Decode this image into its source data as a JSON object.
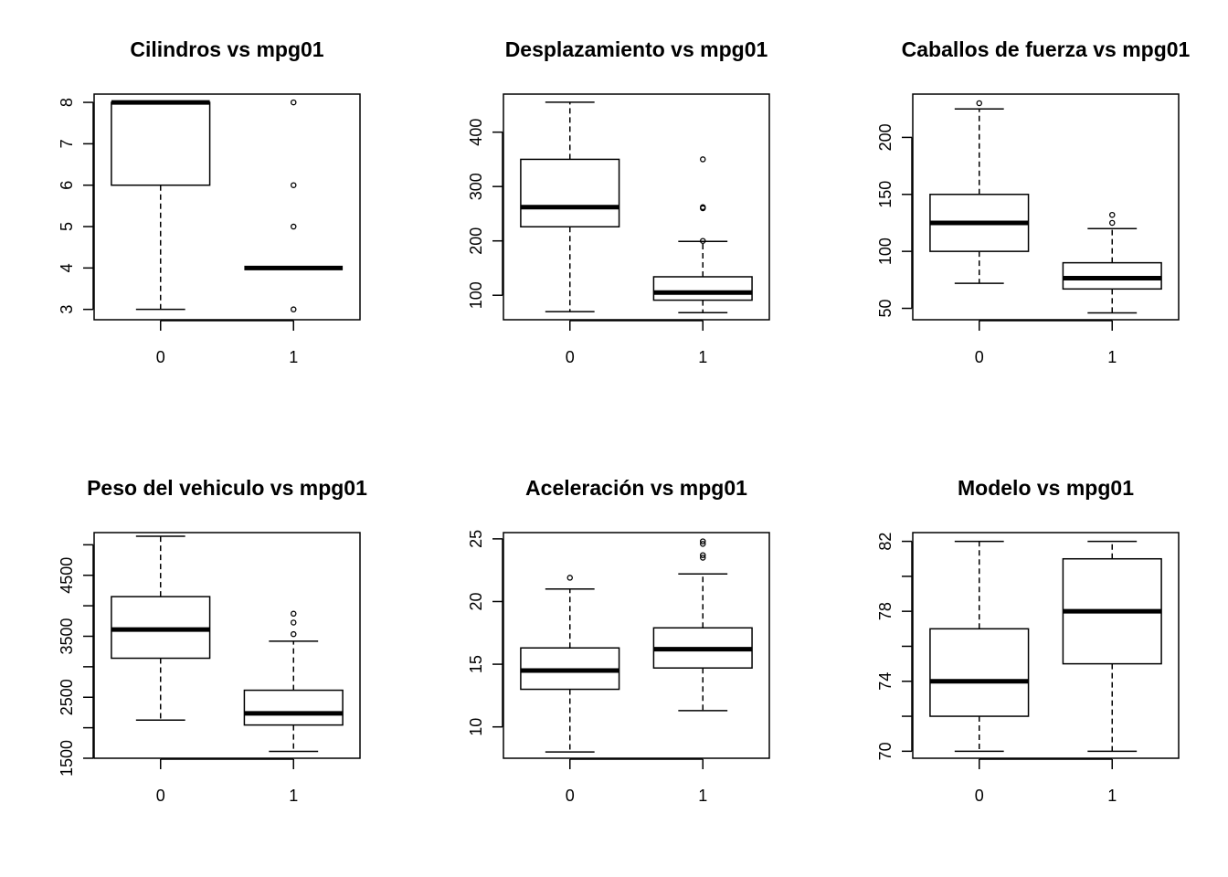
{
  "chart_data": [
    {
      "type": "boxplot",
      "title": "Cilindros vs mpg01",
      "categories": [
        "0",
        "1"
      ],
      "ylim": [
        2.75,
        8.2
      ],
      "yticks": [
        3,
        4,
        5,
        6,
        7,
        8
      ],
      "boxes": [
        {
          "min": 3,
          "q1": 6,
          "median": 8,
          "q3": 8,
          "max": 8,
          "outliers": []
        },
        {
          "min": 4,
          "q1": 4,
          "median": 4,
          "q3": 4,
          "max": 4,
          "outliers": [
            3,
            5,
            6,
            8
          ]
        }
      ]
    },
    {
      "type": "boxplot",
      "title": "Desplazamiento vs mpg01",
      "categories": [
        "0",
        "1"
      ],
      "ylim": [
        55,
        470
      ],
      "yticks": [
        100,
        200,
        300,
        400
      ],
      "boxes": [
        {
          "min": 70,
          "q1": 226,
          "median": 262,
          "q3": 350,
          "max": 455,
          "outliers": []
        },
        {
          "min": 68,
          "q1": 91,
          "median": 105,
          "q3": 134,
          "max": 199,
          "outliers": [
            200,
            260,
            262,
            350
          ]
        }
      ]
    },
    {
      "type": "boxplot",
      "title": "Caballos de fuerza vs mpg01",
      "categories": [
        "0",
        "1"
      ],
      "ylim": [
        40,
        238
      ],
      "yticks": [
        50,
        100,
        150,
        200
      ],
      "boxes": [
        {
          "min": 72,
          "q1": 100,
          "median": 125,
          "q3": 150,
          "max": 225,
          "outliers": [
            230
          ]
        },
        {
          "min": 46,
          "q1": 67,
          "median": 76.5,
          "q3": 90,
          "max": 120,
          "outliers": [
            125,
            132
          ]
        }
      ]
    },
    {
      "type": "boxplot",
      "title": "Peso del vehiculo vs mpg01",
      "categories": [
        "0",
        "1"
      ],
      "ylim": [
        1500,
        5200
      ],
      "yticks": [
        1500,
        2500,
        3500,
        4500
      ],
      "minor_yticks": [
        2000,
        3000,
        4000,
        5000
      ],
      "boxes": [
        {
          "min": 2125,
          "q1": 3140,
          "median": 3610,
          "q3": 4150,
          "max": 5140,
          "outliers": []
        },
        {
          "min": 1613,
          "q1": 2045,
          "median": 2235,
          "q3": 2615,
          "max": 3420,
          "outliers": [
            3535,
            3725,
            3870
          ]
        }
      ]
    },
    {
      "type": "boxplot",
      "title": "Aceleración vs mpg01",
      "categories": [
        "0",
        "1"
      ],
      "ylim": [
        7.5,
        25.5
      ],
      "yticks": [
        10,
        15,
        20,
        25
      ],
      "boxes": [
        {
          "min": 8,
          "q1": 13,
          "median": 14.5,
          "q3": 16.3,
          "max": 21,
          "outliers": [
            21.9
          ]
        },
        {
          "min": 11.3,
          "q1": 14.7,
          "median": 16.2,
          "q3": 17.9,
          "max": 22.2,
          "outliers": [
            23.5,
            23.7,
            24.6,
            24.8
          ]
        }
      ]
    },
    {
      "type": "boxplot",
      "title": "Modelo vs mpg01",
      "categories": [
        "0",
        "1"
      ],
      "ylim": [
        69.6,
        82.5
      ],
      "yticks": [
        70,
        74,
        78,
        82
      ],
      "minor_yticks": [
        72,
        76,
        80
      ],
      "boxes": [
        {
          "min": 70,
          "q1": 72,
          "median": 74,
          "q3": 77,
          "max": 82,
          "outliers": []
        },
        {
          "min": 70,
          "q1": 75,
          "median": 78,
          "q3": 81,
          "max": 82,
          "outliers": []
        }
      ]
    }
  ]
}
